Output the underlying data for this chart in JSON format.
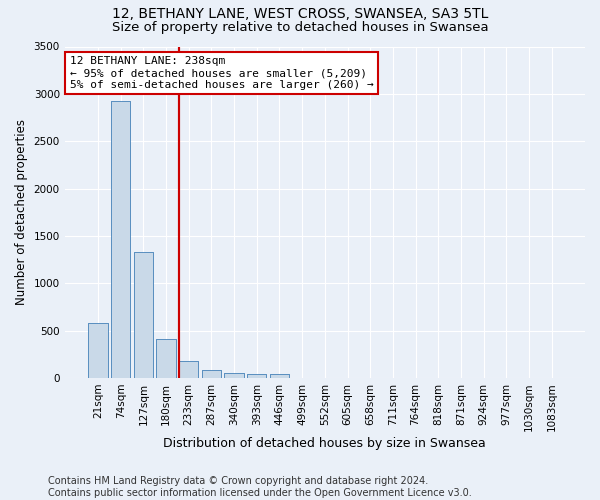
{
  "title": "12, BETHANY LANE, WEST CROSS, SWANSEA, SA3 5TL",
  "subtitle": "Size of property relative to detached houses in Swansea",
  "xlabel": "Distribution of detached houses by size in Swansea",
  "ylabel": "Number of detached properties",
  "categories": [
    "21sqm",
    "74sqm",
    "127sqm",
    "180sqm",
    "233sqm",
    "287sqm",
    "340sqm",
    "393sqm",
    "446sqm",
    "499sqm",
    "552sqm",
    "605sqm",
    "658sqm",
    "711sqm",
    "764sqm",
    "818sqm",
    "871sqm",
    "924sqm",
    "977sqm",
    "1030sqm",
    "1083sqm"
  ],
  "values": [
    580,
    2920,
    1330,
    415,
    175,
    80,
    55,
    45,
    40,
    0,
    0,
    0,
    0,
    0,
    0,
    0,
    0,
    0,
    0,
    0,
    0
  ],
  "bar_color": "#c9d9e8",
  "bar_edge_color": "#5a8fc0",
  "vline_index": 4,
  "vline_color": "#cc0000",
  "annotation_line1": "12 BETHANY LANE: 238sqm",
  "annotation_line2": "← 95% of detached houses are smaller (5,209)",
  "annotation_line3": "5% of semi-detached houses are larger (260) →",
  "annotation_box_color": "#ffffff",
  "annotation_box_edge_color": "#cc0000",
  "ylim": [
    0,
    3500
  ],
  "yticks": [
    0,
    500,
    1000,
    1500,
    2000,
    2500,
    3000,
    3500
  ],
  "footer": "Contains HM Land Registry data © Crown copyright and database right 2024.\nContains public sector information licensed under the Open Government Licence v3.0.",
  "bg_color": "#eaf0f8",
  "plot_bg_color": "#eaf0f8",
  "grid_color": "#ffffff",
  "title_fontsize": 10,
  "subtitle_fontsize": 9.5,
  "annot_fontsize": 8,
  "xlabel_fontsize": 9,
  "ylabel_fontsize": 8.5,
  "tick_fontsize": 7.5,
  "footer_fontsize": 7
}
